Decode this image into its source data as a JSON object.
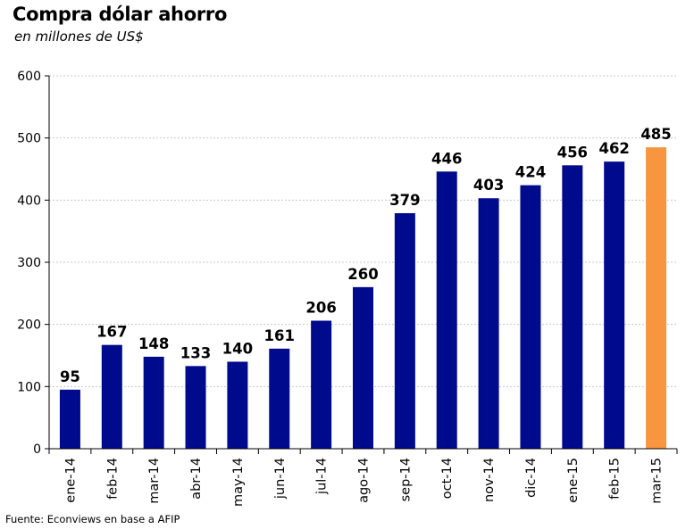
{
  "chart_data": {
    "type": "bar",
    "title": "Compra dólar ahorro",
    "subtitle": "en millones de US$",
    "categories": [
      "ene-14",
      "feb-14",
      "mar-14",
      "abr-14",
      "may-14",
      "jun-14",
      "jul-14",
      "ago-14",
      "sep-14",
      "oct-14",
      "nov-14",
      "dic-14",
      "ene-15",
      "feb-15",
      "mar-15"
    ],
    "values": [
      95,
      167,
      148,
      133,
      140,
      161,
      206,
      260,
      379,
      446,
      403,
      424,
      456,
      462,
      485
    ],
    "ylim": [
      0,
      600
    ],
    "yticks": [
      0,
      100,
      200,
      300,
      400,
      500,
      600
    ],
    "grid": true,
    "legend": "none",
    "colors": {
      "bar": "#000a8c",
      "highlight": "#f7963f",
      "grid": "#c8c8c8",
      "axis": "#000000"
    },
    "highlight_category": "mar-15"
  },
  "footer": {
    "source": "Fuente: Econviews en base a AFIP"
  }
}
